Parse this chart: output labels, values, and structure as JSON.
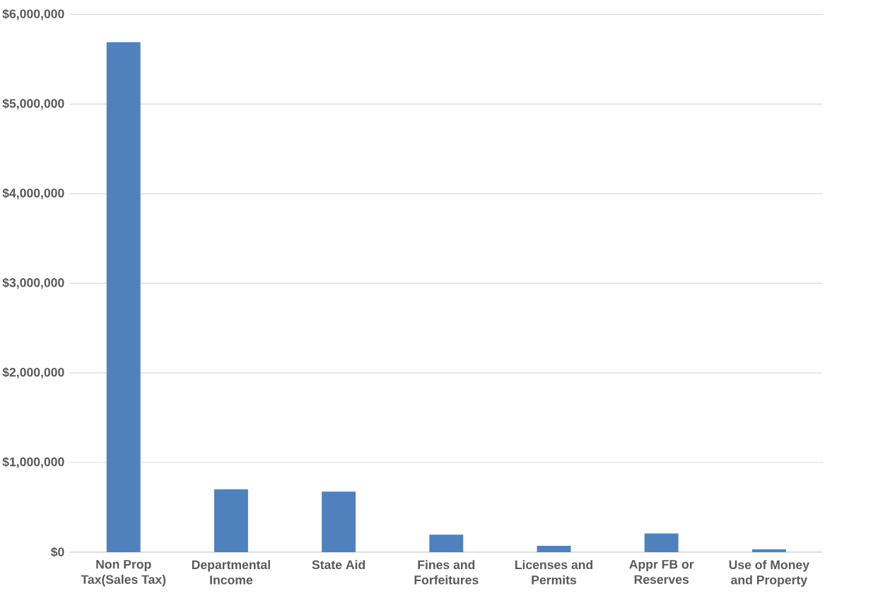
{
  "chart_data": {
    "type": "bar",
    "categories": [
      "Non Prop Tax(Sales Tax)",
      "Departmental Income",
      "State Aid",
      "Fines and Forfeitures",
      "Licenses and Permits",
      "Appr FB or Reserves",
      "Use of Money and Property"
    ],
    "values": [
      5690000,
      700000,
      675000,
      195000,
      70000,
      208000,
      30000
    ],
    "color": "#4f81bd",
    "ylim": [
      0,
      6000000
    ],
    "yticks": [
      {
        "value": 0,
        "label": "$0"
      },
      {
        "value": 1000000,
        "label": "$1,000,000"
      },
      {
        "value": 2000000,
        "label": "$2,000,000"
      },
      {
        "value": 3000000,
        "label": "$3,000,000"
      },
      {
        "value": 4000000,
        "label": "$4,000,000"
      },
      {
        "value": 5000000,
        "label": "$5,000,000"
      },
      {
        "value": 6000000,
        "label": "$6,000,000"
      }
    ],
    "grid": "y"
  }
}
